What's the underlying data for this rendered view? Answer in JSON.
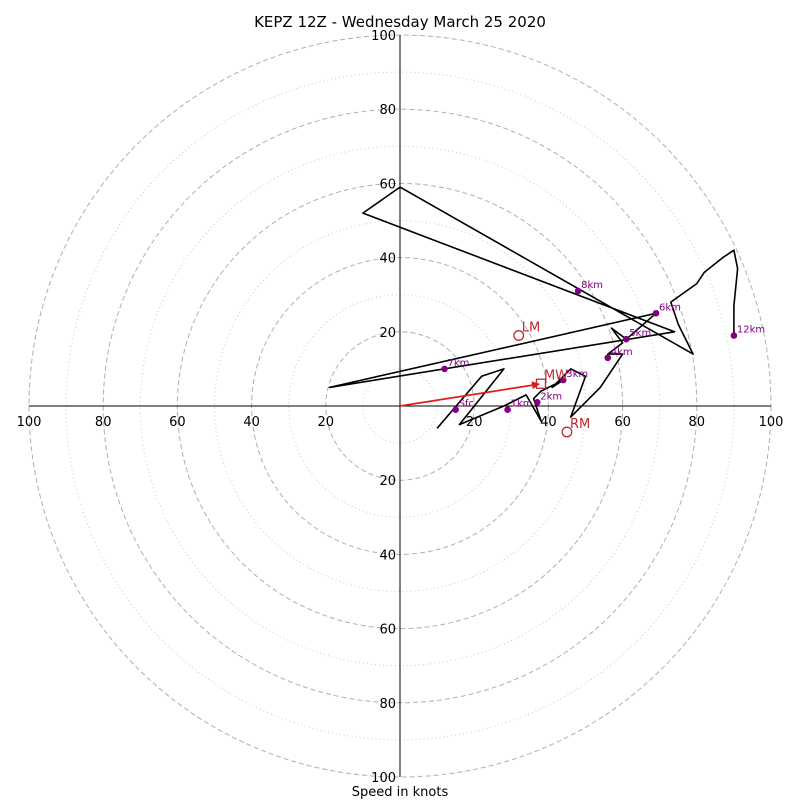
{
  "chart_data": {
    "type": "hodograph",
    "title": "KEPZ 12Z - Wednesday March 25 2020",
    "xlabel": "Speed in knots",
    "rmax": 100,
    "ring_labels": [
      "20",
      "40",
      "60",
      "80",
      "100"
    ],
    "ring_values": [
      20,
      40,
      60,
      80,
      100
    ],
    "minor_rings": [
      10,
      30,
      50,
      70,
      90
    ],
    "grid": true,
    "trace": [
      [
        10,
        -6
      ],
      [
        22,
        8
      ],
      [
        28,
        10
      ],
      [
        16,
        -5
      ],
      [
        28,
        0
      ],
      [
        34,
        3
      ],
      [
        38,
        -4
      ],
      [
        36,
        2
      ],
      [
        38,
        4
      ],
      [
        44,
        7
      ],
      [
        41,
        5
      ],
      [
        46,
        10
      ],
      [
        50,
        8
      ],
      [
        46,
        -3
      ],
      [
        54,
        5
      ],
      [
        60,
        14
      ],
      [
        56,
        14
      ],
      [
        60,
        17
      ],
      [
        57,
        21
      ],
      [
        61,
        18
      ],
      [
        69,
        25
      ],
      [
        -19,
        5
      ],
      [
        74,
        20
      ],
      [
        -10,
        52
      ],
      [
        0,
        59
      ],
      [
        79,
        14
      ],
      [
        75,
        22
      ],
      [
        73,
        28
      ],
      [
        80,
        33
      ],
      [
        82,
        36
      ],
      [
        87,
        40
      ],
      [
        90,
        42
      ],
      [
        91,
        37
      ],
      [
        90,
        27
      ],
      [
        90,
        19
      ]
    ],
    "height_labels": [
      {
        "label": "Sfc",
        "u": 15,
        "v": -1
      },
      {
        "label": "1km",
        "u": 29,
        "v": -1
      },
      {
        "label": "2km",
        "u": 37,
        "v": 1
      },
      {
        "label": "3km",
        "u": 44,
        "v": 7
      },
      {
        "label": "4km",
        "u": 56,
        "v": 13
      },
      {
        "label": "5km",
        "u": 61,
        "v": 18
      },
      {
        "label": "6km",
        "u": 69,
        "v": 25
      },
      {
        "label": "7km",
        "u": 12,
        "v": 10
      },
      {
        "label": "8km",
        "u": 48,
        "v": 31
      },
      {
        "label": "12km",
        "u": 90,
        "v": 19
      }
    ],
    "motions": [
      {
        "label": "LM",
        "u": 32,
        "v": 19,
        "marker": "circle"
      },
      {
        "label": "MW",
        "u": 38,
        "v": 6,
        "marker": "square"
      },
      {
        "label": "RM",
        "u": 45,
        "v": -7,
        "marker": "circle"
      }
    ],
    "mean_wind_vector": {
      "u": 38,
      "v": 6
    },
    "colors": {
      "trace": "#000000",
      "height_points": "#800080",
      "motions": "#c0282d",
      "vector": "#e31a1c",
      "grid": "#b0b0b0"
    }
  }
}
